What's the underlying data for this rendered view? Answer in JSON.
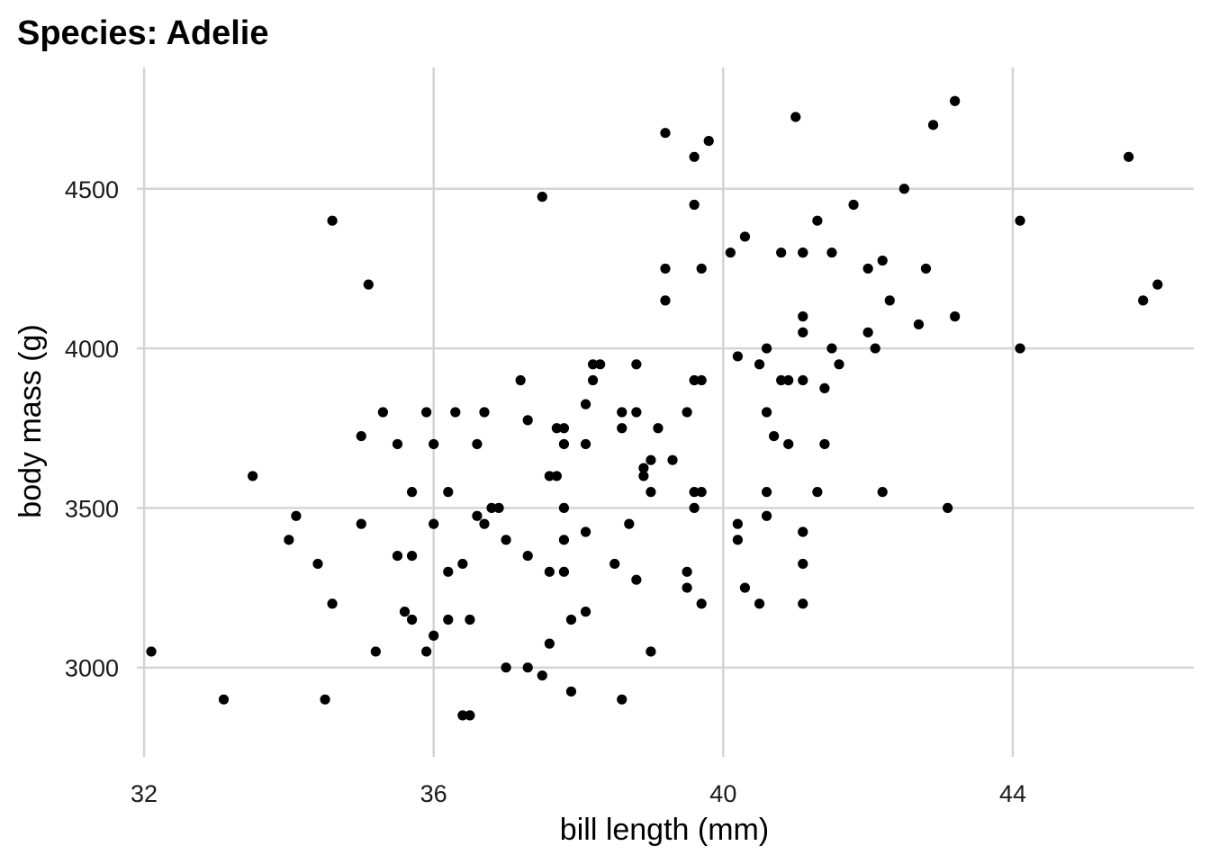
{
  "chart_data": {
    "type": "scatter",
    "title": "Species: Adelie",
    "xlabel": "bill length (mm)",
    "ylabel": "body mass (g)",
    "xlim": [
      31.9,
      46.5
    ],
    "ylim": [
      2720,
      4880
    ],
    "xticks": [
      32,
      36,
      40,
      44
    ],
    "yticks": [
      3000,
      3500,
      4000,
      4500
    ],
    "grid": true,
    "legend": "none",
    "point_color": "#000000",
    "series": [
      {
        "x": [
          32.1,
          33.1,
          33.5,
          34.0,
          34.1,
          34.4,
          34.5,
          34.6,
          34.6,
          35.0,
          35.0,
          35.1,
          35.2,
          35.3,
          35.5,
          35.5,
          35.6,
          35.7,
          35.7,
          35.7,
          35.9,
          35.9,
          36.0,
          36.0,
          36.0,
          36.2,
          36.2,
          36.2,
          36.3,
          36.4,
          36.4,
          36.5,
          36.5,
          36.6,
          36.6,
          36.7,
          36.7,
          36.8,
          36.9,
          37.0,
          37.0,
          37.2,
          37.3,
          37.3,
          37.3,
          37.5,
          37.5,
          37.6,
          37.6,
          37.6,
          37.7,
          37.7,
          37.8,
          37.8,
          37.8,
          37.8,
          37.8,
          37.9,
          37.9,
          38.1,
          38.1,
          38.1,
          38.1,
          38.2,
          38.2,
          38.3,
          38.5,
          38.6,
          38.6,
          38.6,
          38.7,
          38.8,
          38.8,
          38.8,
          38.9,
          38.9,
          39.0,
          39.0,
          39.0,
          39.1,
          39.2,
          39.2,
          39.2,
          39.3,
          39.5,
          39.5,
          39.5,
          39.6,
          39.6,
          39.6,
          39.6,
          39.6,
          39.7,
          39.7,
          39.7,
          39.7,
          39.8,
          40.1,
          40.2,
          40.2,
          40.2,
          40.3,
          40.3,
          40.5,
          40.5,
          40.6,
          40.6,
          40.6,
          40.6,
          40.7,
          40.8,
          40.8,
          40.9,
          40.9,
          41.0,
          41.1,
          41.1,
          41.1,
          41.1,
          41.1,
          41.1,
          41.1,
          41.1,
          41.3,
          41.3,
          41.4,
          41.4,
          41.5,
          41.5,
          41.6,
          41.8,
          42.0,
          42.0,
          42.1,
          42.2,
          42.2,
          42.3,
          42.5,
          42.7,
          42.8,
          42.9,
          43.1,
          43.2,
          43.2,
          44.1,
          44.1,
          45.6,
          45.8,
          46.0
        ],
        "y": [
          3050,
          2900,
          3600,
          3400,
          3475,
          3325,
          2900,
          4400,
          3200,
          3725,
          3450,
          4200,
          3050,
          3800,
          3700,
          3350,
          3175,
          3550,
          3350,
          3150,
          3800,
          3050,
          3700,
          3450,
          3100,
          3550,
          3300,
          3150,
          3800,
          3325,
          2850,
          3150,
          2850,
          3700,
          3475,
          3800,
          3450,
          3500,
          3500,
          3400,
          3000,
          3900,
          3775,
          3350,
          3000,
          4475,
          2975,
          3600,
          3300,
          3075,
          3750,
          3600,
          3750,
          3700,
          3500,
          3400,
          3300,
          3150,
          2925,
          3825,
          3700,
          3425,
          3175,
          3950,
          3900,
          3950,
          3325,
          3800,
          3750,
          2900,
          3450,
          3950,
          3800,
          3275,
          3625,
          3600,
          3650,
          3550,
          3050,
          3750,
          4675,
          4250,
          4150,
          3650,
          3800,
          3300,
          3250,
          4600,
          4450,
          3900,
          3550,
          3500,
          4250,
          3900,
          3550,
          3200,
          4650,
          4300,
          3975,
          3450,
          3400,
          4350,
          3250,
          3950,
          3200,
          4000,
          3800,
          3550,
          3475,
          3725,
          4300,
          3900,
          3900,
          3700,
          4725,
          4300,
          4100,
          4050,
          3900,
          3425,
          3325,
          3200,
          4300,
          4400,
          3550,
          3875,
          3700,
          4300,
          4000,
          3950,
          4450,
          4250,
          4050,
          4000,
          4275,
          3550,
          4150,
          4500,
          4075,
          4250,
          4700,
          3500,
          4775,
          4100,
          4400,
          4000,
          4600,
          4150,
          4200
        ]
      }
    ]
  }
}
